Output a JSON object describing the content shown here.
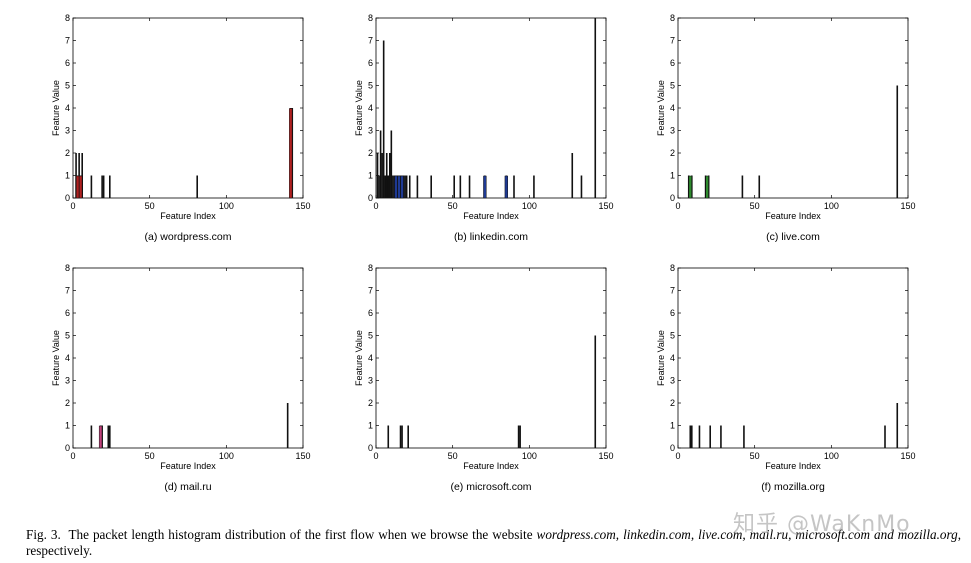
{
  "caption": {
    "fig_label": "Fig. 3.",
    "text_1": "The packet length histogram distribution of the first flow when we browse the website",
    "sites": "wordpress.com, linkedin.com, live.com, mail.ru, microsoft.com",
    "and": "and",
    "last_site": "mozilla.org",
    "text_2": ", respectively."
  },
  "watermark": "知乎 @WaKnMo",
  "chart_data": [
    {
      "type": "bar",
      "subtitle": "(a) wordpress.com",
      "xlabel": "Feature Index",
      "ylabel": "Feature Value",
      "xlim": [
        0,
        150
      ],
      "ylim": [
        0,
        8
      ],
      "xticks": [
        0,
        50,
        100,
        150
      ],
      "yticks": [
        0,
        1,
        2,
        3,
        4,
        5,
        6,
        7,
        8
      ],
      "grid": false,
      "accent_color": "#b02020",
      "x": [
        2,
        3,
        4,
        5,
        6,
        12,
        19,
        20,
        24,
        81,
        142,
        143
      ],
      "values": [
        2,
        1,
        2,
        1,
        2,
        1,
        1,
        1,
        1,
        1,
        4,
        4
      ],
      "colored": [
        3,
        5,
        142
      ]
    },
    {
      "type": "bar",
      "subtitle": "(b) linkedin.com",
      "xlabel": "Feature Index",
      "ylabel": "Feature Value",
      "xlim": [
        0,
        150
      ],
      "ylim": [
        0,
        8
      ],
      "xticks": [
        0,
        50,
        100,
        150
      ],
      "yticks": [
        0,
        1,
        2,
        3,
        4,
        5,
        6,
        7,
        8
      ],
      "grid": false,
      "accent_color": "#1f3a93",
      "x": [
        1,
        2,
        3,
        4,
        5,
        6,
        7,
        8,
        9,
        10,
        11,
        12,
        13,
        14,
        15,
        16,
        17,
        18,
        19,
        20,
        22,
        27,
        36,
        51,
        55,
        61,
        71,
        85,
        90,
        103,
        128,
        134,
        143
      ],
      "values": [
        2,
        1,
        3,
        2,
        7,
        1,
        2,
        1,
        2,
        3,
        1,
        1,
        1,
        1,
        1,
        1,
        1,
        1,
        1,
        1,
        1,
        1,
        1,
        1,
        1,
        1,
        1,
        1,
        1,
        1,
        2,
        1,
        8
      ],
      "colored": [
        13,
        15,
        17,
        71,
        85
      ]
    },
    {
      "type": "bar",
      "subtitle": "(c) live.com",
      "xlabel": "Feature Index",
      "ylabel": "Feature Value",
      "xlim": [
        0,
        150
      ],
      "ylim": [
        0,
        8
      ],
      "xticks": [
        0,
        50,
        100,
        150
      ],
      "yticks": [
        0,
        1,
        2,
        3,
        4,
        5,
        6,
        7,
        8
      ],
      "grid": false,
      "accent_color": "#2e8b2e",
      "x": [
        7,
        9,
        18,
        20,
        42,
        53,
        143
      ],
      "values": [
        1,
        1,
        1,
        1,
        1,
        1,
        5
      ],
      "colored": [
        8,
        19
      ]
    },
    {
      "type": "bar",
      "subtitle": "(d) mail.ru",
      "xlabel": "Feature Index",
      "ylabel": "Feature Value",
      "xlim": [
        0,
        150
      ],
      "ylim": [
        0,
        8
      ],
      "xticks": [
        0,
        50,
        100,
        150
      ],
      "yticks": [
        0,
        1,
        2,
        3,
        4,
        5,
        6,
        7,
        8
      ],
      "grid": false,
      "accent_color": "#c0407a",
      "x": [
        12,
        18,
        19,
        23,
        24,
        140
      ],
      "values": [
        1,
        1,
        1,
        1,
        1,
        2
      ],
      "colored": [
        18
      ]
    },
    {
      "type": "bar",
      "subtitle": "(e) microsoft.com",
      "xlabel": "Feature Index",
      "ylabel": "Feature Value",
      "xlim": [
        0,
        150
      ],
      "ylim": [
        0,
        8
      ],
      "xticks": [
        0,
        50,
        100,
        150
      ],
      "yticks": [
        0,
        1,
        2,
        3,
        4,
        5,
        6,
        7,
        8
      ],
      "grid": false,
      "accent_color": "#444444",
      "x": [
        8,
        16,
        17,
        21,
        93,
        94,
        143
      ],
      "values": [
        1,
        1,
        1,
        1,
        1,
        1,
        5
      ],
      "colored": []
    },
    {
      "type": "bar",
      "subtitle": "(f) mozilla.org",
      "xlabel": "Feature Index",
      "ylabel": "Feature Value",
      "xlim": [
        0,
        150
      ],
      "ylim": [
        0,
        8
      ],
      "xticks": [
        0,
        50,
        100,
        150
      ],
      "yticks": [
        0,
        1,
        2,
        3,
        4,
        5,
        6,
        7,
        8
      ],
      "grid": false,
      "accent_color": "#444444",
      "x": [
        8,
        9,
        14,
        21,
        28,
        43,
        135,
        143
      ],
      "values": [
        1,
        1,
        1,
        1,
        1,
        1,
        1,
        2
      ],
      "colored": []
    }
  ]
}
